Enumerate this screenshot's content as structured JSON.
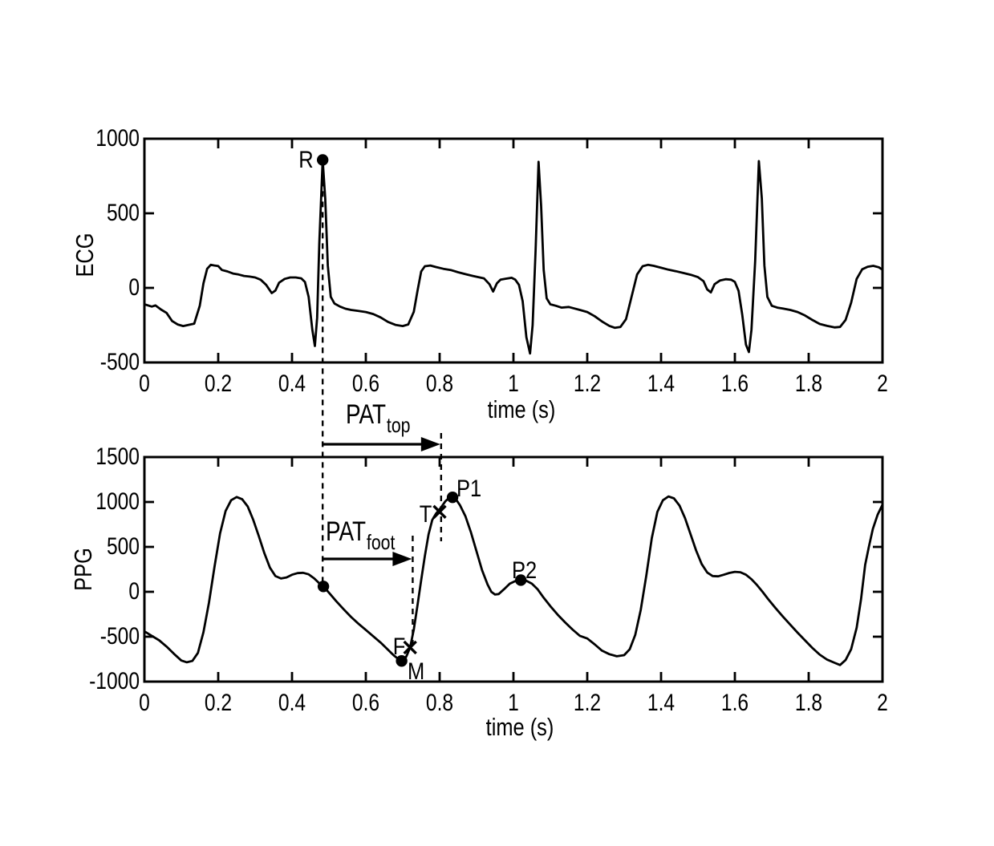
{
  "figure": {
    "background": "#ffffff",
    "ink": "#000000"
  },
  "chart_data": [
    {
      "id": "ecg",
      "type": "line",
      "title": "",
      "ylabel": "ECG",
      "xlabel": "time (s)",
      "xlim": [
        0,
        2
      ],
      "ylim": [
        -500,
        1000
      ],
      "grid": false,
      "box": true,
      "legend": null,
      "xticks": [
        "0",
        "0.2",
        "0.4",
        "0.6",
        "0.8",
        "1",
        "1.2",
        "1.4",
        "1.6",
        "1.8",
        "2"
      ],
      "xtick_values": [
        0,
        0.2,
        0.4,
        0.6,
        0.8,
        1,
        1.2,
        1.4,
        1.6,
        1.8,
        2
      ],
      "yticks": [
        "1000",
        "500",
        "0",
        "-500"
      ],
      "ytick_values": [
        1000,
        500,
        0,
        -500
      ],
      "markers": [
        {
          "label": "R",
          "t": 0.483,
          "v": 858,
          "style": "dot"
        }
      ],
      "points": [
        [
          0,
          -110
        ],
        [
          0.02,
          -125
        ],
        [
          0.03,
          -118
        ],
        [
          0.045,
          -145
        ],
        [
          0.06,
          -168
        ],
        [
          0.075,
          -222
        ],
        [
          0.09,
          -245
        ],
        [
          0.105,
          -256
        ],
        [
          0.12,
          -248
        ],
        [
          0.135,
          -240
        ],
        [
          0.15,
          -120
        ],
        [
          0.16,
          30
        ],
        [
          0.17,
          128
        ],
        [
          0.18,
          155
        ],
        [
          0.19,
          150
        ],
        [
          0.2,
          146
        ],
        [
          0.21,
          120
        ],
        [
          0.225,
          110
        ],
        [
          0.24,
          96
        ],
        [
          0.255,
          90
        ],
        [
          0.27,
          80
        ],
        [
          0.285,
          76
        ],
        [
          0.3,
          70
        ],
        [
          0.315,
          55
        ],
        [
          0.33,
          20
        ],
        [
          0.345,
          -35
        ],
        [
          0.355,
          -18
        ],
        [
          0.365,
          35
        ],
        [
          0.38,
          60
        ],
        [
          0.395,
          70
        ],
        [
          0.41,
          70
        ],
        [
          0.425,
          64
        ],
        [
          0.435,
          40
        ],
        [
          0.445,
          -60
        ],
        [
          0.455,
          -280
        ],
        [
          0.462,
          -390
        ],
        [
          0.468,
          -200
        ],
        [
          0.474,
          300
        ],
        [
          0.483,
          858
        ],
        [
          0.49,
          600
        ],
        [
          0.497,
          150
        ],
        [
          0.505,
          -60
        ],
        [
          0.515,
          -105
        ],
        [
          0.53,
          -125
        ],
        [
          0.545,
          -140
        ],
        [
          0.56,
          -148
        ],
        [
          0.58,
          -155
        ],
        [
          0.6,
          -162
        ],
        [
          0.62,
          -175
        ],
        [
          0.64,
          -198
        ],
        [
          0.66,
          -228
        ],
        [
          0.68,
          -248
        ],
        [
          0.7,
          -256
        ],
        [
          0.715,
          -245
        ],
        [
          0.73,
          -160
        ],
        [
          0.74,
          -20
        ],
        [
          0.75,
          110
        ],
        [
          0.76,
          145
        ],
        [
          0.775,
          150
        ],
        [
          0.79,
          140
        ],
        [
          0.81,
          128
        ],
        [
          0.83,
          120
        ],
        [
          0.85,
          105
        ],
        [
          0.87,
          92
        ],
        [
          0.89,
          80
        ],
        [
          0.905,
          72
        ],
        [
          0.92,
          64
        ],
        [
          0.935,
          25
        ],
        [
          0.945,
          -25
        ],
        [
          0.955,
          30
        ],
        [
          0.965,
          55
        ],
        [
          0.98,
          62
        ],
        [
          0.995,
          68
        ],
        [
          1.005,
          55
        ],
        [
          1.015,
          20
        ],
        [
          1.025,
          -90
        ],
        [
          1.035,
          -330
        ],
        [
          1.045,
          -440
        ],
        [
          1.052,
          -250
        ],
        [
          1.06,
          250
        ],
        [
          1.068,
          845
        ],
        [
          1.075,
          550
        ],
        [
          1.082,
          120
        ],
        [
          1.09,
          -70
        ],
        [
          1.1,
          -110
        ],
        [
          1.115,
          -120
        ],
        [
          1.13,
          -132
        ],
        [
          1.15,
          -128
        ],
        [
          1.165,
          -138
        ],
        [
          1.18,
          -148
        ],
        [
          1.2,
          -162
        ],
        [
          1.22,
          -190
        ],
        [
          1.24,
          -225
        ],
        [
          1.26,
          -255
        ],
        [
          1.275,
          -268
        ],
        [
          1.29,
          -262
        ],
        [
          1.305,
          -210
        ],
        [
          1.32,
          -60
        ],
        [
          1.335,
          90
        ],
        [
          1.35,
          145
        ],
        [
          1.365,
          155
        ],
        [
          1.38,
          148
        ],
        [
          1.4,
          135
        ],
        [
          1.42,
          122
        ],
        [
          1.44,
          112
        ],
        [
          1.46,
          100
        ],
        [
          1.48,
          88
        ],
        [
          1.5,
          72
        ],
        [
          1.515,
          45
        ],
        [
          1.525,
          -10
        ],
        [
          1.535,
          -30
        ],
        [
          1.545,
          25
        ],
        [
          1.56,
          50
        ],
        [
          1.575,
          58
        ],
        [
          1.59,
          55
        ],
        [
          1.6,
          40
        ],
        [
          1.61,
          -20
        ],
        [
          1.62,
          -180
        ],
        [
          1.63,
          -380
        ],
        [
          1.638,
          -430
        ],
        [
          1.645,
          -280
        ],
        [
          1.655,
          180
        ],
        [
          1.665,
          850
        ],
        [
          1.673,
          600
        ],
        [
          1.68,
          150
        ],
        [
          1.688,
          -60
        ],
        [
          1.7,
          -120
        ],
        [
          1.715,
          -132
        ],
        [
          1.73,
          -138
        ],
        [
          1.75,
          -148
        ],
        [
          1.77,
          -162
        ],
        [
          1.79,
          -185
        ],
        [
          1.81,
          -215
        ],
        [
          1.83,
          -242
        ],
        [
          1.85,
          -255
        ],
        [
          1.87,
          -265
        ],
        [
          1.885,
          -262
        ],
        [
          1.9,
          -215
        ],
        [
          1.915,
          -100
        ],
        [
          1.93,
          60
        ],
        [
          1.945,
          125
        ],
        [
          1.96,
          142
        ],
        [
          1.975,
          148
        ],
        [
          1.99,
          138
        ],
        [
          2,
          122
        ]
      ]
    },
    {
      "id": "ppg",
      "type": "line",
      "title": "",
      "ylabel": "PPG",
      "xlabel": "time (s)",
      "xlim": [
        0,
        2
      ],
      "ylim": [
        -1000,
        1500
      ],
      "grid": false,
      "box": true,
      "legend": null,
      "xticks": [
        "0",
        "0.2",
        "0.4",
        "0.6",
        "0.8",
        "1",
        "1.2",
        "1.4",
        "1.6",
        "1.8",
        "2"
      ],
      "xtick_values": [
        0,
        0.2,
        0.4,
        0.6,
        0.8,
        1,
        1.2,
        1.4,
        1.6,
        1.8,
        2
      ],
      "yticks": [
        "1500",
        "1000",
        "500",
        "0",
        "-500",
        "-1000"
      ],
      "ytick_values": [
        1500,
        1000,
        500,
        0,
        -500,
        -1000
      ],
      "markers": [
        {
          "label": "",
          "t": 0.485,
          "v": 60,
          "style": "dot"
        },
        {
          "label": "M",
          "t": 0.697,
          "v": -770,
          "style": "dot"
        },
        {
          "label": "F",
          "t": 0.72,
          "v": -620,
          "style": "x"
        },
        {
          "label": "T",
          "t": 0.8,
          "v": 890,
          "style": "x"
        },
        {
          "label": "P1",
          "t": 0.835,
          "v": 1052,
          "style": "dot"
        },
        {
          "label": "P2",
          "t": 1.02,
          "v": 130,
          "style": "dot"
        }
      ],
      "points": [
        [
          0,
          -440
        ],
        [
          0.02,
          -490
        ],
        [
          0.04,
          -540
        ],
        [
          0.06,
          -610
        ],
        [
          0.08,
          -690
        ],
        [
          0.1,
          -765
        ],
        [
          0.115,
          -785
        ],
        [
          0.13,
          -770
        ],
        [
          0.145,
          -680
        ],
        [
          0.16,
          -450
        ],
        [
          0.175,
          -120
        ],
        [
          0.19,
          280
        ],
        [
          0.205,
          650
        ],
        [
          0.22,
          900
        ],
        [
          0.235,
          1020
        ],
        [
          0.25,
          1055
        ],
        [
          0.265,
          1030
        ],
        [
          0.28,
          950
        ],
        [
          0.295,
          800
        ],
        [
          0.31,
          620
        ],
        [
          0.325,
          430
        ],
        [
          0.34,
          270
        ],
        [
          0.355,
          175
        ],
        [
          0.37,
          148
        ],
        [
          0.385,
          160
        ],
        [
          0.4,
          190
        ],
        [
          0.415,
          208
        ],
        [
          0.43,
          212
        ],
        [
          0.445,
          195
        ],
        [
          0.46,
          150
        ],
        [
          0.475,
          90
        ],
        [
          0.485,
          60
        ],
        [
          0.5,
          -10
        ],
        [
          0.52,
          -105
        ],
        [
          0.54,
          -195
        ],
        [
          0.56,
          -280
        ],
        [
          0.58,
          -355
        ],
        [
          0.6,
          -425
        ],
        [
          0.62,
          -495
        ],
        [
          0.64,
          -565
        ],
        [
          0.66,
          -645
        ],
        [
          0.675,
          -705
        ],
        [
          0.69,
          -755
        ],
        [
          0.697,
          -770
        ],
        [
          0.705,
          -760
        ],
        [
          0.712,
          -700
        ],
        [
          0.72,
          -620
        ],
        [
          0.73,
          -420
        ],
        [
          0.74,
          -150
        ],
        [
          0.75,
          130
        ],
        [
          0.76,
          400
        ],
        [
          0.77,
          640
        ],
        [
          0.78,
          800
        ],
        [
          0.79,
          870
        ],
        [
          0.803,
          935
        ],
        [
          0.815,
          1005
        ],
        [
          0.825,
          1045
        ],
        [
          0.835,
          1052
        ],
        [
          0.845,
          1025
        ],
        [
          0.855,
          965
        ],
        [
          0.87,
          840
        ],
        [
          0.885,
          660
        ],
        [
          0.9,
          450
        ],
        [
          0.915,
          240
        ],
        [
          0.93,
          80
        ],
        [
          0.94,
          0
        ],
        [
          0.95,
          -30
        ],
        [
          0.96,
          -25
        ],
        [
          0.975,
          30
        ],
        [
          0.99,
          90
        ],
        [
          1.005,
          120
        ],
        [
          1.02,
          130
        ],
        [
          1.035,
          122
        ],
        [
          1.05,
          90
        ],
        [
          1.065,
          30
        ],
        [
          1.08,
          -55
        ],
        [
          1.1,
          -160
        ],
        [
          1.12,
          -255
        ],
        [
          1.14,
          -340
        ],
        [
          1.16,
          -420
        ],
        [
          1.18,
          -490
        ],
        [
          1.2,
          -520
        ],
        [
          1.22,
          -585
        ],
        [
          1.24,
          -655
        ],
        [
          1.26,
          -695
        ],
        [
          1.28,
          -718
        ],
        [
          1.3,
          -705
        ],
        [
          1.315,
          -640
        ],
        [
          1.33,
          -480
        ],
        [
          1.345,
          -200
        ],
        [
          1.36,
          180
        ],
        [
          1.375,
          600
        ],
        [
          1.39,
          890
        ],
        [
          1.405,
          1020
        ],
        [
          1.42,
          1062
        ],
        [
          1.435,
          1040
        ],
        [
          1.45,
          960
        ],
        [
          1.465,
          820
        ],
        [
          1.48,
          640
        ],
        [
          1.495,
          460
        ],
        [
          1.51,
          310
        ],
        [
          1.525,
          215
        ],
        [
          1.54,
          175
        ],
        [
          1.555,
          172
        ],
        [
          1.57,
          190
        ],
        [
          1.585,
          210
        ],
        [
          1.6,
          222
        ],
        [
          1.615,
          218
        ],
        [
          1.63,
          190
        ],
        [
          1.645,
          140
        ],
        [
          1.66,
          75
        ],
        [
          1.675,
          0
        ],
        [
          1.69,
          -80
        ],
        [
          1.71,
          -180
        ],
        [
          1.73,
          -275
        ],
        [
          1.75,
          -365
        ],
        [
          1.77,
          -455
        ],
        [
          1.79,
          -540
        ],
        [
          1.81,
          -625
        ],
        [
          1.83,
          -700
        ],
        [
          1.85,
          -755
        ],
        [
          1.87,
          -790
        ],
        [
          1.885,
          -815
        ],
        [
          1.9,
          -760
        ],
        [
          1.915,
          -640
        ],
        [
          1.93,
          -400
        ],
        [
          1.942,
          -80
        ],
        [
          1.953,
          300
        ],
        [
          1.963,
          500
        ],
        [
          1.974,
          700
        ],
        [
          1.987,
          860
        ],
        [
          2,
          970
        ]
      ]
    }
  ],
  "annotations": {
    "pat_top": {
      "text": "PAT",
      "sub": "top",
      "from_t": 0.483,
      "to_t": 0.804
    },
    "pat_foot": {
      "text": "PAT",
      "sub": "foot",
      "from_t": 0.483,
      "to_t": 0.727
    },
    "guides": [
      {
        "name": "r-peak-line",
        "t": 0.483
      },
      {
        "name": "top-line",
        "t": 0.804
      },
      {
        "name": "foot-line",
        "t": 0.727
      }
    ]
  }
}
